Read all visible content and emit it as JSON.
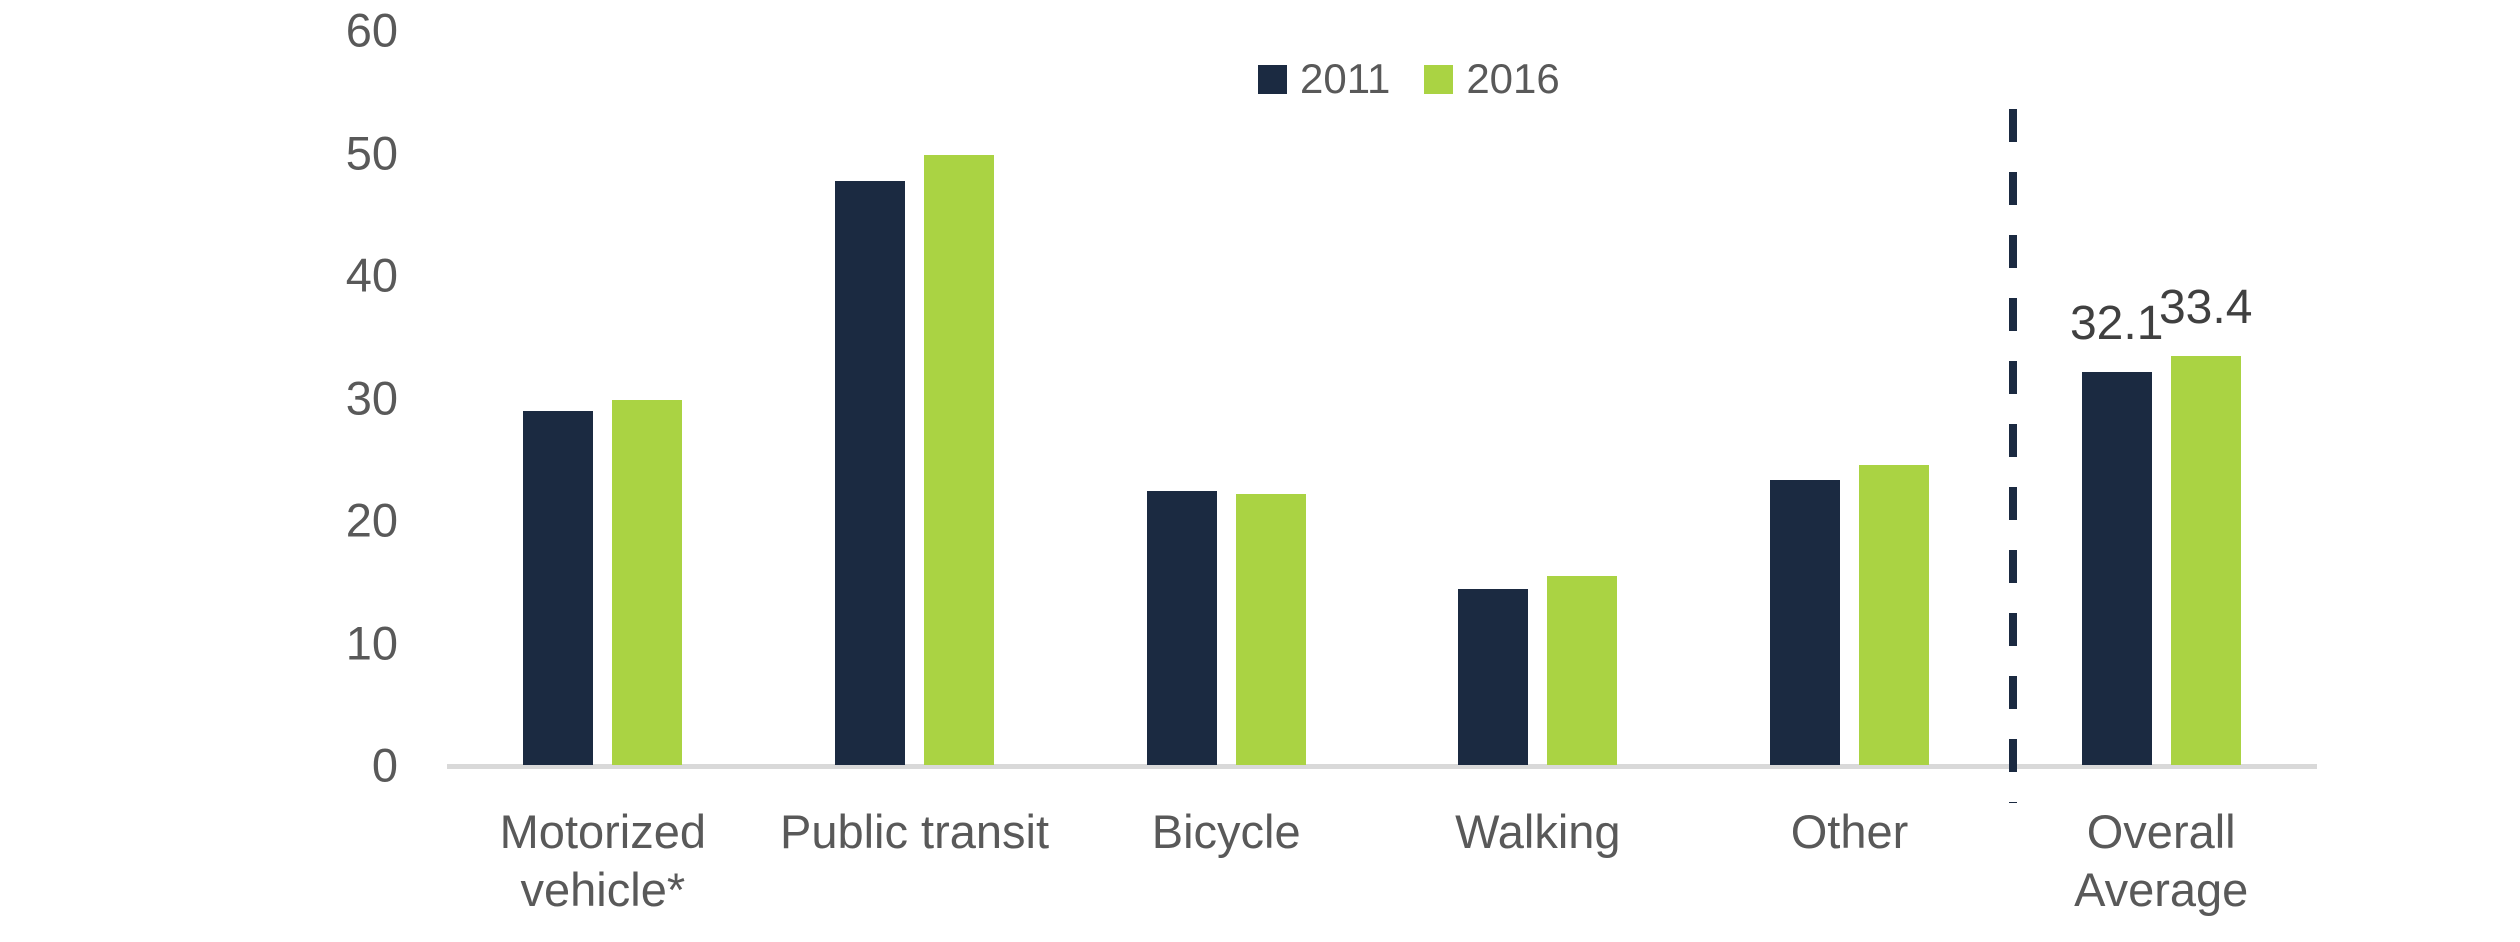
{
  "chart_data": {
    "type": "bar",
    "title": "",
    "xlabel": "",
    "ylabel": "",
    "categories": [
      "Motorized\nvehicle*",
      "Public transit",
      "Bicycle",
      "Walking",
      "Other",
      "Overall Average"
    ],
    "series": [
      {
        "name": "2011",
        "color": "#1b2a41",
        "values": [
          28.9,
          47.7,
          22.4,
          14.4,
          23.3,
          32.1
        ],
        "data_labels": [
          null,
          null,
          null,
          null,
          null,
          "32.1"
        ]
      },
      {
        "name": "2016",
        "color": "#aad343",
        "values": [
          29.8,
          49.8,
          22.1,
          15.4,
          24.5,
          33.4
        ],
        "data_labels": [
          null,
          null,
          null,
          null,
          null,
          "33.4"
        ]
      }
    ],
    "ylim": [
      0,
      60
    ],
    "yticks": [
      0,
      10,
      20,
      30,
      40,
      50,
      60
    ],
    "grid": "off",
    "legend_position": "top-center",
    "annotations": {
      "divider_note": "dashed vertical line separating Overall Average from mode categories"
    }
  },
  "colors": {
    "axis_text": "#595959",
    "data_label_text": "#404040",
    "axis_line": "#d9d9d9",
    "divider": "#1b2a41",
    "background": "#ffffff"
  }
}
